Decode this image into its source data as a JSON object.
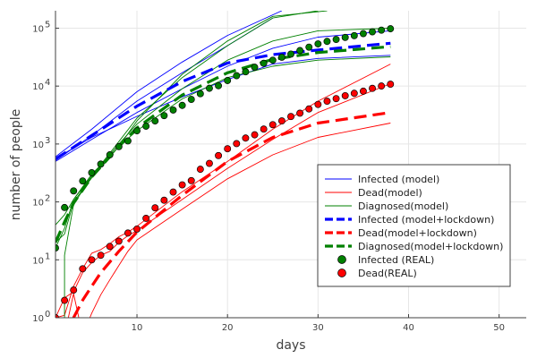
{
  "chart_data": {
    "type": "line",
    "title": "",
    "xlabel": "days",
    "ylabel": "number of people",
    "xlim": [
      1,
      53
    ],
    "ylim": [
      1,
      200000
    ],
    "yscale": "log",
    "grid": true,
    "legend_position": "bottom-right",
    "x_ticks": [
      10,
      20,
      30,
      40,
      50
    ],
    "y_ticks": [
      {
        "value": 1,
        "base": "10",
        "exp": "0"
      },
      {
        "value": 10,
        "base": "10",
        "exp": "1"
      },
      {
        "value": 100,
        "base": "10",
        "exp": "2"
      },
      {
        "value": 1000,
        "base": "10",
        "exp": "3"
      },
      {
        "value": 10000,
        "base": "10",
        "exp": "4"
      },
      {
        "value": 100000,
        "base": "10",
        "exp": "5"
      }
    ],
    "legend": [
      {
        "label": "Infected (model)",
        "kind": "line",
        "color": "#0000ff"
      },
      {
        "label": "Dead(model)",
        "kind": "line",
        "color": "#ff0000"
      },
      {
        "label": "Diagnosed(model)",
        "kind": "line",
        "color": "#008000"
      },
      {
        "label": "Infected (model+lockdown)",
        "kind": "dash",
        "color": "#0000ff"
      },
      {
        "label": "Dead(model+lockdown)",
        "kind": "dash",
        "color": "#ff0000"
      },
      {
        "label": "Diagnosed(model+lockdown)",
        "kind": "dash",
        "color": "#008000"
      },
      {
        "label": "Infected (REAL)",
        "kind": "marker",
        "color": "#008000"
      },
      {
        "label": "Dead(REAL)",
        "kind": "marker",
        "color": "#ff0000"
      }
    ],
    "series": [
      {
        "name": "Infected (model)",
        "style": "thin",
        "color": "#0000ff",
        "x": [
          1,
          5,
          10,
          15,
          20,
          25,
          30,
          38
        ],
        "y": [
          500,
          1200,
          3500,
          9000,
          22000,
          45000,
          70000,
          90000
        ]
      },
      {
        "name": "Infected (model)",
        "style": "thin",
        "color": "#0000ff",
        "x": [
          1,
          5,
          10,
          15,
          20,
          25
        ],
        "y": [
          520,
          1400,
          5500,
          17000,
          50000,
          150000
        ]
      },
      {
        "name": "Infected (model)",
        "style": "thin",
        "color": "#0000ff",
        "x": [
          1,
          5,
          10,
          15,
          20,
          25,
          30,
          38
        ],
        "y": [
          560,
          1300,
          3000,
          6500,
          13000,
          24000,
          30000,
          34000
        ]
      },
      {
        "name": "Infected (model)",
        "style": "thin",
        "color": "#0000ff",
        "x": [
          1,
          5,
          10,
          15,
          20,
          26
        ],
        "y": [
          600,
          1800,
          8000,
          26000,
          75000,
          200000
        ]
      },
      {
        "name": "Dead(model)",
        "style": "thin",
        "color": "#ff0000",
        "x": [
          1,
          2,
          3,
          4,
          5,
          6,
          7,
          8,
          9,
          10,
          15,
          20,
          25,
          30,
          38
        ],
        "y": [
          1,
          2.2,
          2.8,
          6,
          9,
          12,
          14,
          20,
          26,
          32,
          110,
          380,
          1200,
          3500,
          11000
        ]
      },
      {
        "name": "Dead(model)",
        "style": "thin",
        "color": "#ff0000",
        "x": [
          1,
          2,
          3,
          4,
          5,
          6,
          7,
          8,
          9,
          10,
          15,
          20,
          25,
          30,
          38
        ],
        "y": [
          1,
          1.1,
          3.5,
          7,
          13,
          15,
          19,
          25,
          30,
          38,
          150,
          500,
          1800,
          5500,
          24000
        ]
      },
      {
        "name": "Dead(model)",
        "style": "thin",
        "color": "#ff0000",
        "x": [
          1,
          2,
          3,
          4,
          5,
          6,
          7,
          8,
          9,
          10,
          15,
          20,
          25,
          30,
          38
        ],
        "y": [
          1,
          0.5,
          2.6,
          0.5,
          1.2,
          2.5,
          4.5,
          8,
          14,
          22,
          75,
          250,
          650,
          1300,
          2300
        ]
      },
      {
        "name": "Diagnosed(model)",
        "style": "thin",
        "color": "#008000",
        "x": [
          1,
          2,
          3,
          5,
          8,
          10,
          15,
          20,
          25,
          30,
          38
        ],
        "y": [
          40,
          60,
          110,
          300,
          900,
          1700,
          6000,
          14000,
          22000,
          28000,
          32000
        ]
      },
      {
        "name": "Diagnosed(model)",
        "style": "thin",
        "color": "#008000",
        "x": [
          1,
          2,
          3,
          5,
          8,
          10,
          15,
          20,
          25,
          30,
          38
        ],
        "y": [
          16,
          35,
          110,
          280,
          1000,
          2200,
          9000,
          28000,
          60000,
          90000,
          100000
        ]
      },
      {
        "name": "Diagnosed(model)",
        "style": "thin",
        "color": "#008000",
        "x": [
          2,
          2,
          3,
          5,
          8,
          10,
          15,
          20,
          25,
          30
        ],
        "y": [
          0.8,
          12,
          90,
          280,
          1100,
          2800,
          14000,
          50000,
          150000,
          200000
        ]
      },
      {
        "name": "Diagnosed(model)",
        "style": "thin",
        "color": "#008000",
        "x": [
          1,
          2,
          3,
          5,
          8,
          10,
          15,
          20,
          25,
          31
        ],
        "y": [
          20,
          28,
          100,
          260,
          900,
          2500,
          16000,
          60000,
          160000,
          200000
        ]
      },
      {
        "name": "Infected (model+lockdown)",
        "style": "dash",
        "color": "#0000ff",
        "x": [
          1,
          5,
          10,
          15,
          20,
          25,
          30,
          38
        ],
        "y": [
          550,
          1400,
          4500,
          12000,
          25000,
          35000,
          42000,
          55000
        ]
      },
      {
        "name": "Dead(model+lockdown)",
        "style": "dash",
        "color": "#ff0000",
        "x": [
          3,
          4,
          5,
          6,
          8,
          10,
          15,
          20,
          25,
          30,
          38
        ],
        "y": [
          1,
          2,
          3.5,
          6,
          14,
          30,
          130,
          500,
          1300,
          2300,
          3500
        ]
      },
      {
        "name": "Diagnosed(model+lockdown)",
        "style": "dash",
        "color": "#008000",
        "x": [
          1,
          2,
          3,
          5,
          8,
          10,
          15,
          20,
          25,
          30,
          38
        ],
        "y": [
          20,
          45,
          95,
          270,
          900,
          1900,
          7000,
          17000,
          29000,
          38000,
          48000
        ]
      },
      {
        "name": "Infected (REAL)",
        "style": "marker",
        "color": "#008000",
        "x": [
          1,
          2,
          3,
          4,
          5,
          6,
          7,
          8,
          9,
          10,
          11,
          12,
          13,
          14,
          15,
          16,
          17,
          18,
          19,
          20,
          21,
          22,
          23,
          24,
          25,
          26,
          27,
          28,
          29,
          30,
          31,
          32,
          33,
          34,
          35,
          36,
          37,
          38
        ],
        "y": [
          16,
          80,
          155,
          230,
          320,
          450,
          650,
          900,
          1130,
          1690,
          2030,
          2500,
          3090,
          3860,
          4640,
          5880,
          7380,
          9170,
          10150,
          12460,
          15110,
          17660,
          21160,
          24750,
          27980,
          31510,
          35710,
          41030,
          47020,
          53580,
          59140,
          63930,
          69180,
          74380,
          80590,
          86500,
          92470,
          97690
        ]
      },
      {
        "name": "Dead(REAL)",
        "style": "marker",
        "color": "#ff0000",
        "x": [
          1,
          2,
          3,
          4,
          5,
          6,
          7,
          8,
          9,
          10,
          11,
          12,
          13,
          14,
          15,
          16,
          17,
          18,
          19,
          20,
          21,
          22,
          23,
          24,
          25,
          26,
          27,
          28,
          29,
          30,
          31,
          32,
          33,
          34,
          35,
          36,
          37,
          38
        ],
        "y": [
          1,
          2,
          3,
          7,
          10,
          12,
          17,
          21,
          29,
          34,
          52,
          79,
          107,
          148,
          197,
          233,
          366,
          463,
          631,
          827,
          1016,
          1266,
          1441,
          1809,
          2158,
          2503,
          2978,
          3405,
          4032,
          4825,
          5476,
          6077,
          6820,
          7503,
          8165,
          9134,
          10023,
          10779
        ]
      }
    ]
  }
}
